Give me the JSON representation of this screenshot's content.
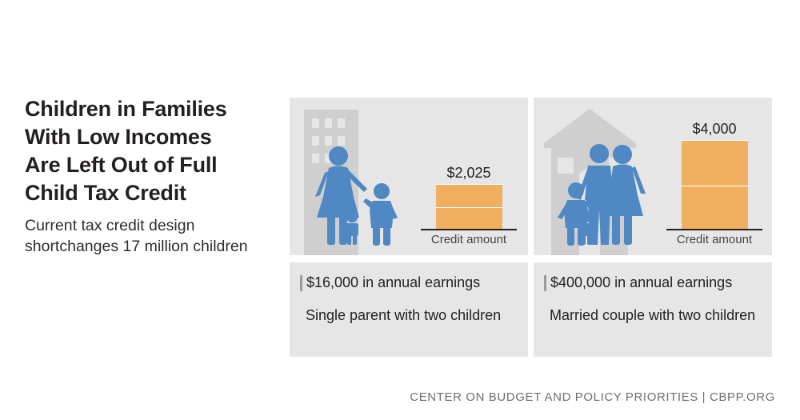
{
  "title": "Children in Families\nWith Low Incomes\nAre Left Out of Full\nChild Tax Credit",
  "subtitle": "Current tax credit design\nshortchanges 17 million children",
  "colors": {
    "bar": "#f0b060",
    "figure": "#4f88c2",
    "panel": "#e6e6e7",
    "building": "#cfcfd0"
  },
  "panels": [
    {
      "amount_label": "$2,025",
      "credit_value": 2025,
      "credit_label": "Credit amount",
      "earnings": "$16,000 in annual earnings",
      "family": "Single parent with two children",
      "icons": [
        "apartment-building-icon",
        "parent-icon",
        "child-icon",
        "toddler-icon"
      ]
    },
    {
      "amount_label": "$4,000",
      "credit_value": 4000,
      "credit_label": "Credit amount",
      "earnings": "$400,000 in annual earnings",
      "family": "Married couple with two children",
      "icons": [
        "house-icon",
        "parent-icon",
        "parent-icon",
        "child-icon",
        "toddler-icon"
      ]
    }
  ],
  "footer": "CENTER ON BUDGET AND POLICY PRIORITIES | CBPP.ORG"
}
